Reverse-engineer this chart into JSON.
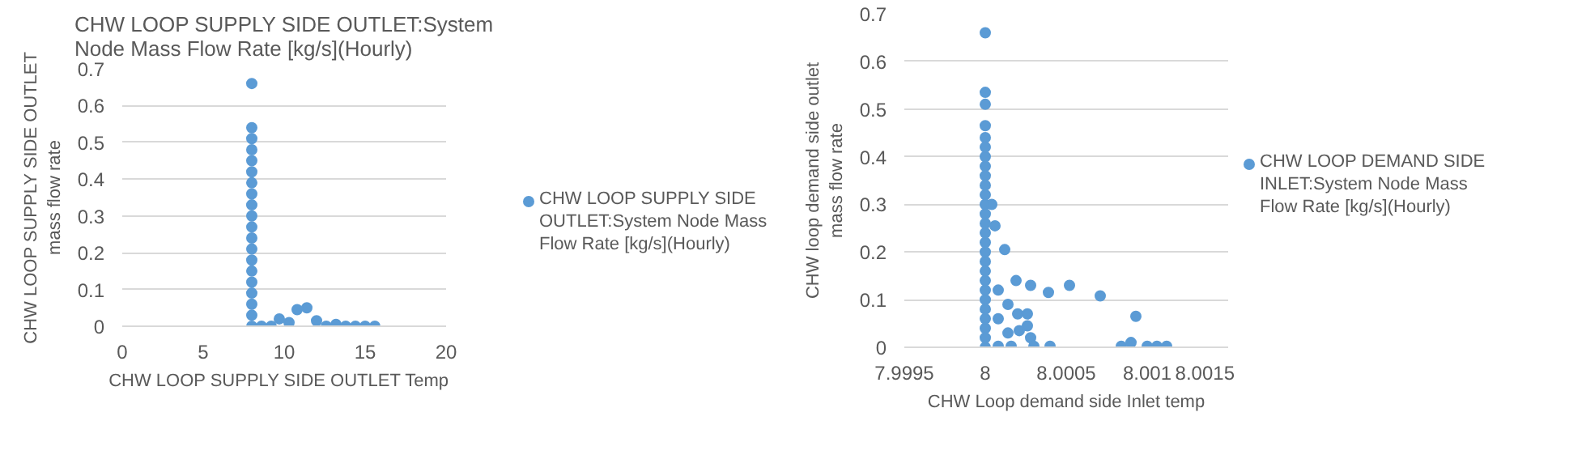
{
  "chart_data": [
    {
      "type": "scatter",
      "title": "CHW LOOP SUPPLY SIDE OUTLET:System Node Mass Flow Rate [kg/s](Hourly)",
      "xlabel": "CHW LOOP SUPPLY  SIDE OUTLET  Temp",
      "ylabel": "CHW LOOP SUPPLY SIDE OUTLET  mass flow rate",
      "xlim": [
        0,
        20
      ],
      "ylim": [
        0,
        0.7
      ],
      "xticks": [
        0,
        5,
        10,
        15,
        20
      ],
      "yticks": [
        0,
        0.1,
        0.2,
        0.3,
        0.4,
        0.5,
        0.6,
        0.7
      ],
      "grid": "y",
      "legend": "right",
      "marker": "circle",
      "series": [
        {
          "name": "CHW LOOP SUPPLY SIDE OUTLET:System Node Mass Flow Rate [kg/s](Hourly)",
          "color": "#5b9bd5",
          "x": [
            8,
            8,
            8,
            8,
            8,
            8,
            8,
            8,
            8,
            8,
            8,
            8,
            8,
            8,
            8,
            8,
            8,
            8,
            8,
            8,
            8.6,
            9.2,
            9.7,
            10.3,
            10.8,
            11.4,
            12,
            12.6,
            13.2,
            13.8,
            14.4,
            15,
            15.6
          ],
          "values": [
            0,
            0.03,
            0.06,
            0.09,
            0.12,
            0.15,
            0.18,
            0.21,
            0.24,
            0.27,
            0.3,
            0.33,
            0.36,
            0.39,
            0.42,
            0.45,
            0.48,
            0.51,
            0.54,
            0.66,
            0,
            0,
            0.02,
            0.01,
            0.045,
            0.05,
            0.015,
            0,
            0.005,
            0,
            0,
            0,
            0
          ]
        }
      ]
    },
    {
      "type": "scatter",
      "xlabel": "CHW Loop demand side Inlet temp",
      "ylabel": "CHW loop demand side outlet mass flow rate",
      "xlim": [
        7.9995,
        8.0015
      ],
      "ylim": [
        0,
        0.7
      ],
      "xticks": [
        7.9995,
        8,
        8.0005,
        8.001,
        8.0015
      ],
      "yticks": [
        0,
        0.1,
        0.2,
        0.3,
        0.4,
        0.5,
        0.6,
        0.7
      ],
      "grid": "y",
      "legend": "right",
      "marker": "circle",
      "series": [
        {
          "name": "CHW LOOP DEMAND SIDE INLET:System Node Mass Flow Rate [kg/s](Hourly)",
          "color": "#5b9bd5",
          "x": [
            8,
            8,
            8,
            8,
            8,
            8,
            8,
            8,
            8,
            8,
            8,
            8,
            8,
            8,
            8,
            8,
            8,
            8,
            8,
            8,
            8,
            8,
            8,
            8,
            8,
            8,
            8,
            8.00004,
            8.00006,
            8.00012,
            8.00019,
            8.00028,
            8.00039,
            8.00052,
            8.00071,
            8.00093,
            8.00008,
            8.00008,
            8.00014,
            8.00014,
            8.0002,
            8.00026,
            8.00026,
            8.00028,
            8.00021,
            8.00008,
            8.00016,
            8.0003,
            8.0004,
            8.00084,
            8.0009,
            8.001,
            8.00106,
            8.00112
          ],
          "values": [
            0,
            0.02,
            0.04,
            0.06,
            0.08,
            0.1,
            0.12,
            0.14,
            0.16,
            0.18,
            0.2,
            0.22,
            0.24,
            0.26,
            0.28,
            0.3,
            0.32,
            0.34,
            0.36,
            0.38,
            0.4,
            0.42,
            0.44,
            0.465,
            0.51,
            0.535,
            0.66,
            0.3,
            0.255,
            0.205,
            0.14,
            0.13,
            0.115,
            0.13,
            0.108,
            0.065,
            0.12,
            0.06,
            0.09,
            0.03,
            0.07,
            0.07,
            0.045,
            0.02,
            0.035,
            0.002,
            0.002,
            0.002,
            0.002,
            0.002,
            0.01,
            0.002,
            0.002,
            0.002
          ]
        }
      ]
    }
  ]
}
